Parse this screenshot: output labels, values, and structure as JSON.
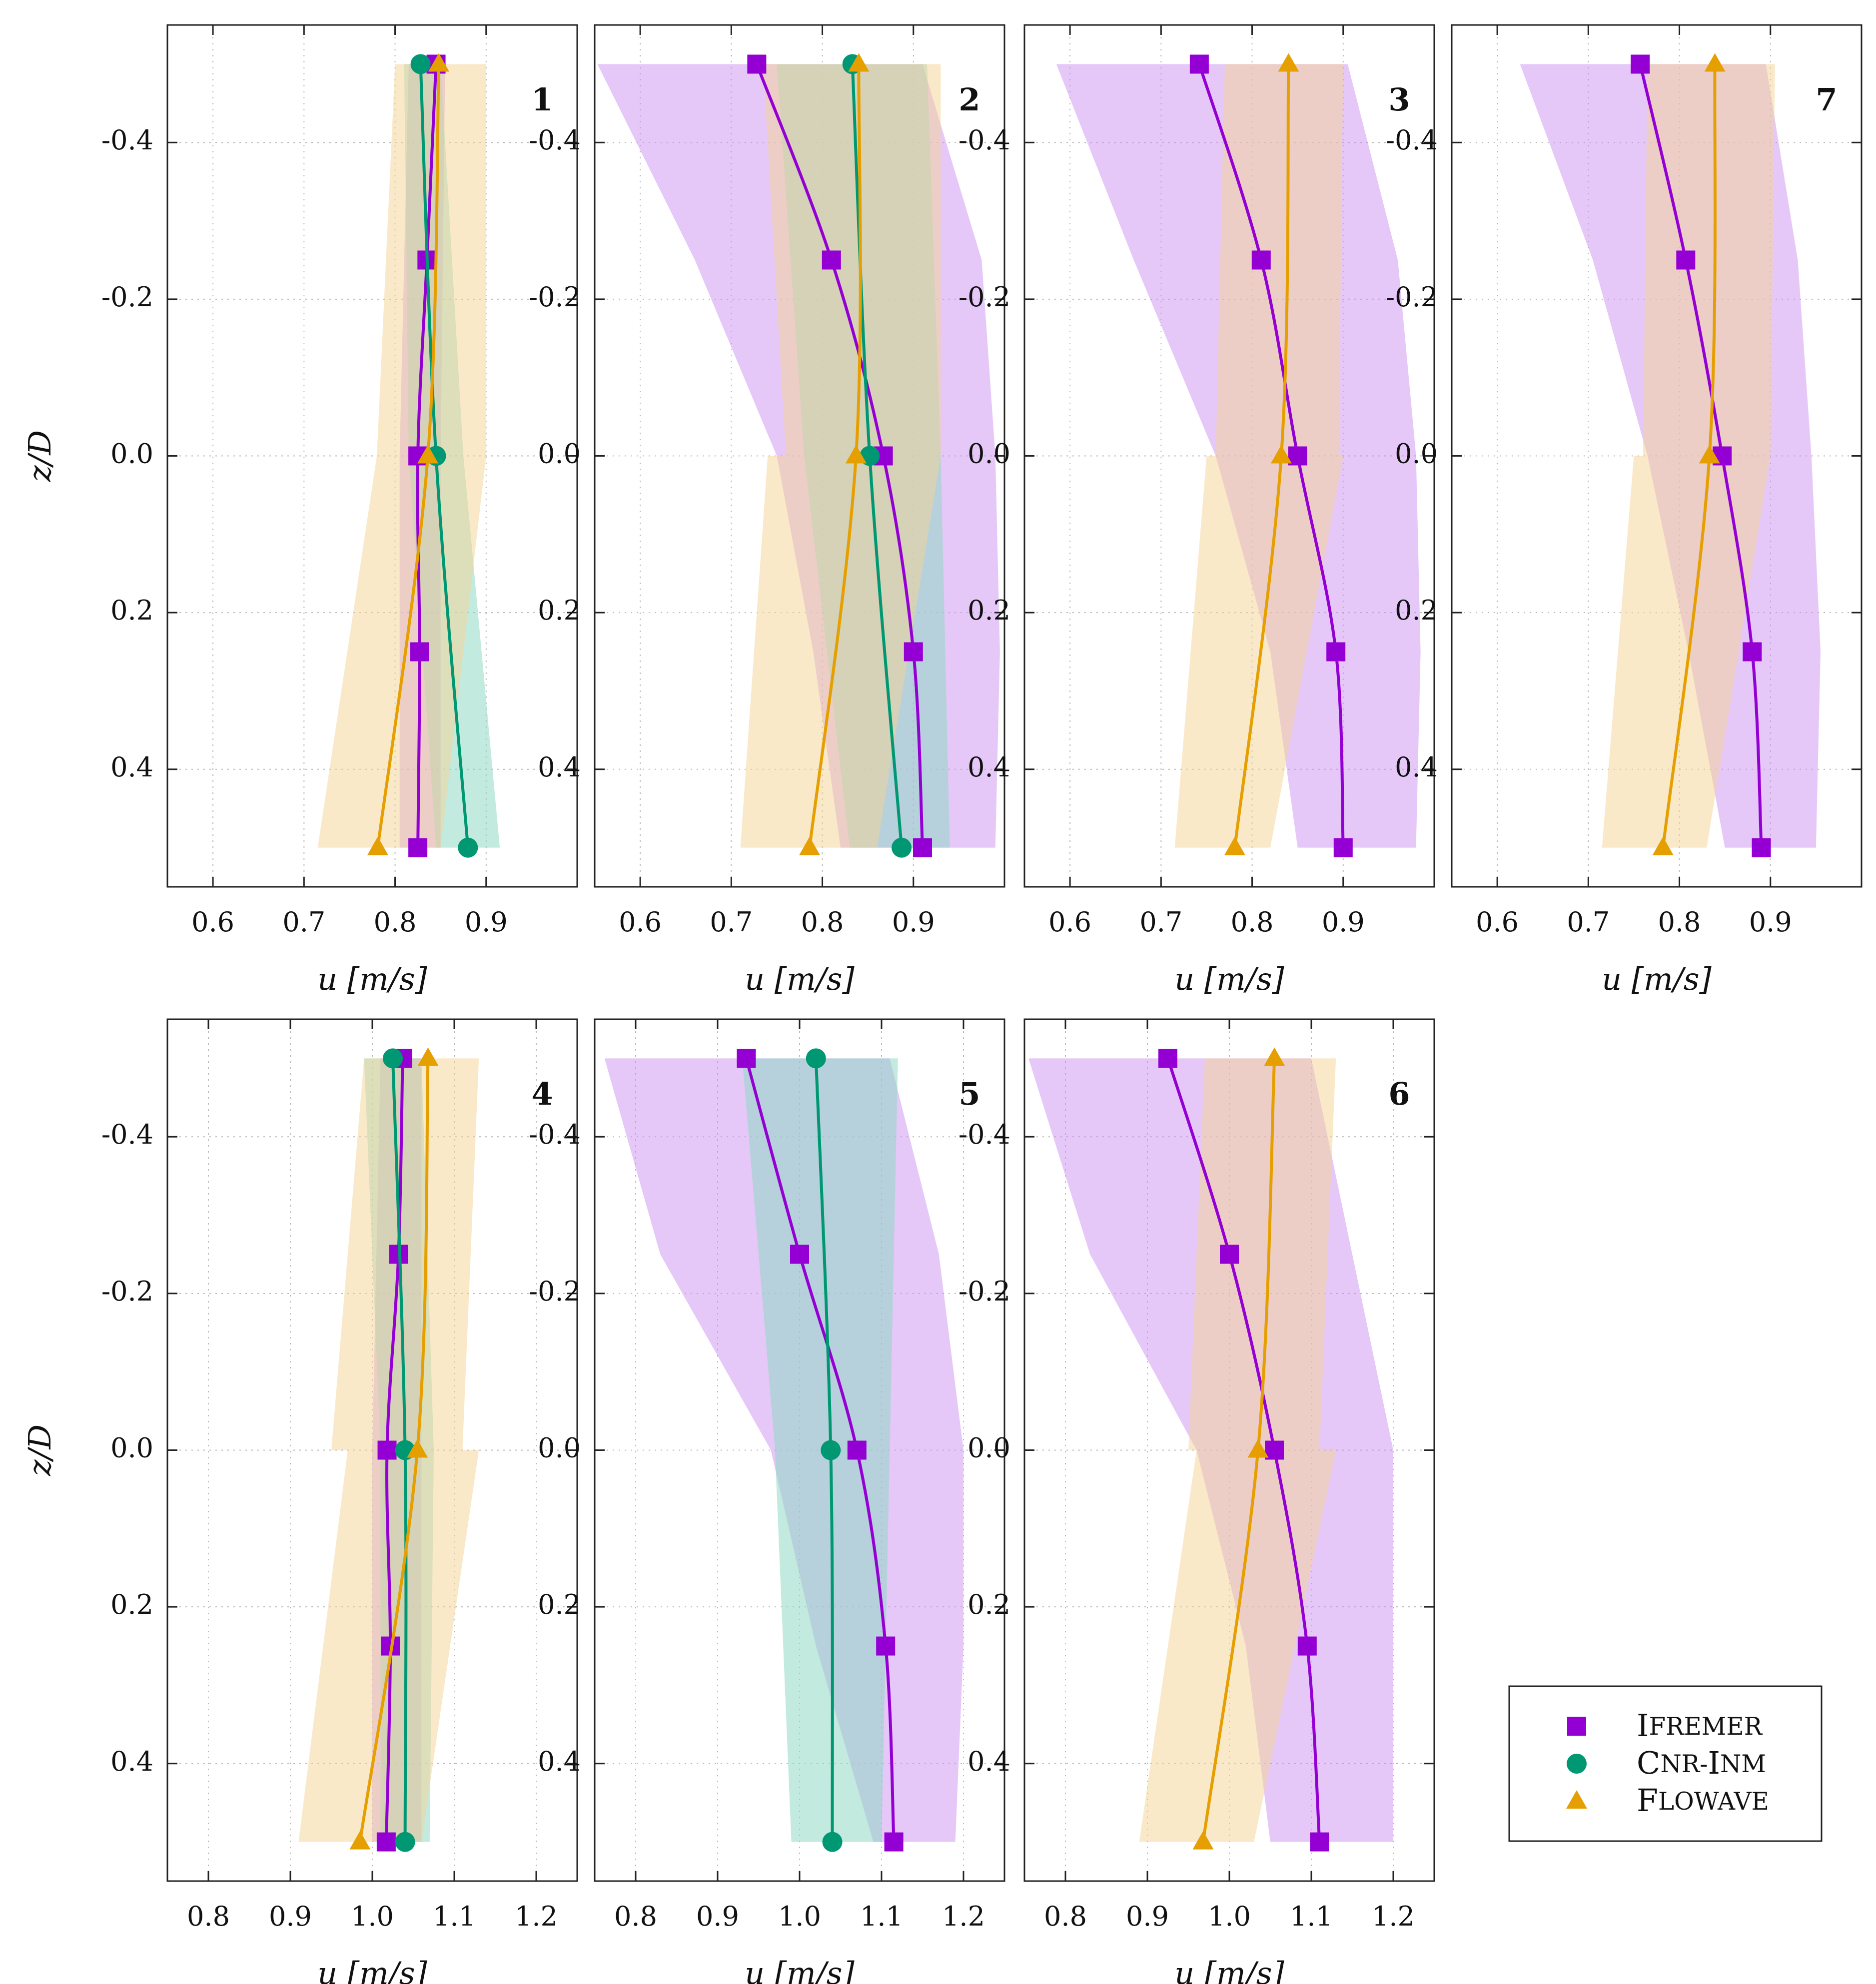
{
  "colors": {
    "ifremer": "#9400D3",
    "cnr": "#009872",
    "flowave": "#E69F00"
  },
  "legend": {
    "items": [
      {
        "key": "ifremer",
        "label": "IFREMER",
        "marker": "square"
      },
      {
        "key": "cnr",
        "label": "CNR-INM",
        "marker": "circle"
      },
      {
        "key": "flowave",
        "label": "FLOWAVE",
        "marker": "triangle"
      }
    ]
  },
  "axis_label_x": "u [m/s]",
  "axis_label_y": "z/D",
  "chart_data": [
    {
      "type": "line",
      "panel": "1",
      "title": "1",
      "xlabel": "u [m/s]",
      "ylabel": "z/D",
      "xlim": [
        0.55,
        1.0
      ],
      "ylim": [
        -0.55,
        0.55
      ],
      "xticks": [
        0.6,
        0.7,
        0.8,
        0.9
      ],
      "xticklabels": [
        "0.6",
        "0.7",
        "0.8",
        "0.9"
      ],
      "yticks": [
        -0.4,
        -0.2,
        0.0,
        0.2,
        0.4
      ],
      "yticklabels": [
        "-0.4",
        "-0.2",
        "0.0",
        "0.2",
        "0.4"
      ],
      "grid": true,
      "series": [
        {
          "name": "IFREMER",
          "key": "ifremer",
          "z": [
            -0.5,
            -0.25,
            0.0,
            0.25,
            0.5
          ],
          "u": [
            0.845,
            0.835,
            0.825,
            0.827,
            0.825
          ],
          "band": {
            "z": [
              -0.5,
              0.0,
              0.5
            ],
            "lo": [
              0.815,
              0.805,
              0.805
            ],
            "hi": [
              0.855,
              0.85,
              0.85
            ]
          }
        },
        {
          "name": "CNR-INM",
          "key": "cnr",
          "z": [
            -0.5,
            0.0,
            0.5
          ],
          "u": [
            0.828,
            0.845,
            0.88
          ],
          "band": {
            "z": [
              -0.5,
              0.0,
              0.5
            ],
            "lo": [
              0.81,
              0.815,
              0.845
            ],
            "hi": [
              0.85,
              0.875,
              0.915
            ]
          }
        },
        {
          "name": "FLOWAVE",
          "key": "flowave",
          "z": [
            -0.5,
            0.0,
            0.5
          ],
          "u": [
            0.848,
            0.836,
            0.781
          ],
          "band": {
            "z": [
              -0.5,
              0.0,
              0.0,
              0.5
            ],
            "lo": [
              0.8,
              0.78,
              0.78,
              0.715
            ],
            "hi": [
              0.9,
              0.9,
              0.9,
              0.85
            ]
          }
        }
      ]
    },
    {
      "type": "line",
      "panel": "2",
      "title": "2",
      "xlabel": "u [m/s]",
      "ylabel": "z/D",
      "xlim": [
        0.55,
        1.0
      ],
      "ylim": [
        -0.55,
        0.55
      ],
      "xticks": [
        0.6,
        0.7,
        0.8,
        0.9
      ],
      "xticklabels": [
        "0.6",
        "0.7",
        "0.8",
        "0.9"
      ],
      "yticks": [
        -0.4,
        -0.2,
        0.0,
        0.2,
        0.4
      ],
      "yticklabels": [
        "-0.4",
        "-0.2",
        "0.0",
        "0.2",
        "0.4"
      ],
      "grid": true,
      "series": [
        {
          "name": "IFREMER",
          "key": "ifremer",
          "z": [
            -0.5,
            -0.25,
            0.0,
            0.25,
            0.5
          ],
          "u": [
            0.728,
            0.81,
            0.867,
            0.9,
            0.91
          ],
          "band": {
            "z": [
              -0.5,
              -0.25,
              0.0,
              0.25,
              0.5
            ],
            "lo": [
              0.553,
              0.66,
              0.75,
              0.79,
              0.82
            ],
            "hi": [
              0.91,
              0.975,
              0.99,
              0.995,
              0.99
            ]
          }
        },
        {
          "name": "CNR-INM",
          "key": "cnr",
          "z": [
            -0.5,
            0.0,
            0.5
          ],
          "u": [
            0.833,
            0.852,
            0.887
          ],
          "band": {
            "z": [
              -0.5,
              0.0,
              0.5
            ],
            "lo": [
              0.75,
              0.78,
              0.83
            ],
            "hi": [
              0.915,
              0.93,
              0.94
            ]
          }
        },
        {
          "name": "FLOWAVE",
          "key": "flowave",
          "z": [
            -0.5,
            0.0,
            0.5
          ],
          "u": [
            0.84,
            0.837,
            0.786
          ],
          "band": {
            "z": [
              -0.5,
              0.0,
              0.0,
              0.5
            ],
            "lo": [
              0.735,
              0.76,
              0.74,
              0.71
            ],
            "hi": [
              0.93,
              0.93,
              0.93,
              0.86
            ]
          }
        }
      ]
    },
    {
      "type": "line",
      "panel": "3",
      "title": "3",
      "xlabel": "u [m/s]",
      "ylabel": "z/D",
      "xlim": [
        0.55,
        1.0
      ],
      "ylim": [
        -0.55,
        0.55
      ],
      "xticks": [
        0.6,
        0.7,
        0.8,
        0.9
      ],
      "xticklabels": [
        "0.6",
        "0.7",
        "0.8",
        "0.9"
      ],
      "yticks": [
        -0.4,
        -0.2,
        0.0,
        0.2,
        0.4
      ],
      "yticklabels": [
        "-0.4",
        "-0.2",
        "0.0",
        "0.2",
        "0.4"
      ],
      "grid": true,
      "series": [
        {
          "name": "IFREMER",
          "key": "ifremer",
          "z": [
            -0.5,
            -0.25,
            0.0,
            0.25,
            0.5
          ],
          "u": [
            0.742,
            0.81,
            0.85,
            0.892,
            0.9
          ],
          "band": {
            "z": [
              -0.5,
              -0.25,
              0.0,
              0.25,
              0.5
            ],
            "lo": [
              0.585,
              0.67,
              0.76,
              0.82,
              0.85
            ],
            "hi": [
              0.905,
              0.96,
              0.98,
              0.985,
              0.98
            ]
          }
        },
        {
          "name": "FLOWAVE",
          "key": "flowave",
          "z": [
            -0.5,
            0.0,
            0.5
          ],
          "u": [
            0.84,
            0.832,
            0.781
          ],
          "band": {
            "z": [
              -0.5,
              0.0,
              0.0,
              0.5
            ],
            "lo": [
              0.77,
              0.76,
              0.75,
              0.715
            ],
            "hi": [
              0.9,
              0.895,
              0.9,
              0.82
            ]
          }
        }
      ]
    },
    {
      "type": "line",
      "panel": "7",
      "title": "7",
      "xlabel": "u [m/s]",
      "ylabel": "z/D",
      "xlim": [
        0.55,
        1.0
      ],
      "ylim": [
        -0.55,
        0.55
      ],
      "xticks": [
        0.6,
        0.7,
        0.8,
        0.9
      ],
      "xticklabels": [
        "0.6",
        "0.7",
        "0.8",
        "0.9"
      ],
      "yticks": [
        -0.4,
        -0.2,
        0.0,
        0.2,
        0.4
      ],
      "yticklabels": [
        "-0.4",
        "-0.2",
        "0.0",
        "0.2",
        "0.4"
      ],
      "grid": true,
      "series": [
        {
          "name": "IFREMER",
          "key": "ifremer",
          "z": [
            -0.5,
            -0.25,
            0.0,
            0.25,
            0.5
          ],
          "u": [
            0.757,
            0.807,
            0.847,
            0.88,
            0.89
          ],
          "band": {
            "z": [
              -0.5,
              -0.25,
              0.0,
              0.25,
              0.5
            ],
            "lo": [
              0.625,
              0.705,
              0.765,
              0.81,
              0.85
            ],
            "hi": [
              0.895,
              0.93,
              0.945,
              0.955,
              0.95
            ]
          }
        },
        {
          "name": "FLOWAVE",
          "key": "flowave",
          "z": [
            -0.5,
            0.0,
            0.5
          ],
          "u": [
            0.839,
            0.833,
            0.782
          ],
          "band": {
            "z": [
              -0.5,
              0.0,
              0.0,
              0.5
            ],
            "lo": [
              0.765,
              0.76,
              0.75,
              0.715
            ],
            "hi": [
              0.905,
              0.9,
              0.9,
              0.83
            ]
          }
        }
      ]
    },
    {
      "type": "line",
      "panel": "4",
      "title": "4",
      "xlabel": "u [m/s]",
      "ylabel": "z/D",
      "xlim": [
        0.75,
        1.25
      ],
      "ylim": [
        -0.55,
        0.55
      ],
      "xticks": [
        0.8,
        0.9,
        1.0,
        1.1,
        1.2
      ],
      "xticklabels": [
        "0.8",
        "0.9",
        "1.0",
        "1.1",
        "1.2"
      ],
      "yticks": [
        -0.4,
        -0.2,
        0.0,
        0.2,
        0.4
      ],
      "yticklabels": [
        "-0.4",
        "-0.2",
        "0.0",
        "0.2",
        "0.4"
      ],
      "grid": true,
      "series": [
        {
          "name": "IFREMER",
          "key": "ifremer",
          "z": [
            -0.5,
            -0.25,
            0.0,
            0.25,
            0.5
          ],
          "u": [
            1.037,
            1.032,
            1.018,
            1.022,
            1.017
          ],
          "band": {
            "z": [
              -0.5,
              0.0,
              0.5
            ],
            "lo": [
              1.01,
              1.0,
              1.0
            ],
            "hi": [
              1.06,
              1.06,
              1.06
            ]
          }
        },
        {
          "name": "CNR-INM",
          "key": "cnr",
          "z": [
            -0.5,
            0.0,
            0.5
          ],
          "u": [
            1.025,
            1.04,
            1.04
          ],
          "band": {
            "z": [
              -0.5,
              0.0,
              0.5
            ],
            "lo": [
              0.99,
              1.01,
              1.01
            ],
            "hi": [
              1.06,
              1.075,
              1.07
            ]
          }
        },
        {
          "name": "FLOWAVE",
          "key": "flowave",
          "z": [
            -0.5,
            0.0,
            0.5
          ],
          "u": [
            1.068,
            1.055,
            0.985
          ],
          "band": {
            "z": [
              -0.5,
              0.0,
              0.0,
              0.5
            ],
            "lo": [
              0.99,
              0.95,
              0.97,
              0.91
            ],
            "hi": [
              1.13,
              1.11,
              1.13,
              1.06
            ]
          }
        }
      ]
    },
    {
      "type": "line",
      "panel": "5",
      "title": "5",
      "xlabel": "u [m/s]",
      "ylabel": "z/D",
      "xlim": [
        0.75,
        1.25
      ],
      "ylim": [
        -0.55,
        0.55
      ],
      "xticks": [
        0.8,
        0.9,
        1.0,
        1.1,
        1.2
      ],
      "xticklabels": [
        "0.8",
        "0.9",
        "1.0",
        "1.1",
        "1.2"
      ],
      "yticks": [
        -0.4,
        -0.2,
        0.0,
        0.2,
        0.4
      ],
      "yticklabels": [
        "-0.4",
        "-0.2",
        "0.0",
        "0.2",
        "0.4"
      ],
      "grid": true,
      "series": [
        {
          "name": "IFREMER",
          "key": "ifremer",
          "z": [
            -0.5,
            -0.25,
            0.0,
            0.25,
            0.5
          ],
          "u": [
            0.935,
            1.0,
            1.07,
            1.105,
            1.115
          ],
          "band": {
            "z": [
              -0.5,
              -0.25,
              0.0,
              0.25,
              0.5
            ],
            "lo": [
              0.762,
              0.83,
              0.965,
              1.02,
              1.09
            ],
            "hi": [
              1.11,
              1.17,
              1.2,
              1.2,
              1.19
            ]
          }
        },
        {
          "name": "CNR-INM",
          "key": "cnr",
          "z": [
            -0.5,
            0.0,
            0.5
          ],
          "u": [
            1.02,
            1.038,
            1.04
          ],
          "band": {
            "z": [
              -0.5,
              0.0,
              0.5
            ],
            "lo": [
              0.93,
              0.97,
              0.99
            ],
            "hi": [
              1.12,
              1.11,
              1.1
            ]
          }
        }
      ]
    },
    {
      "type": "line",
      "panel": "6",
      "title": "6",
      "xlabel": "u [m/s]",
      "ylabel": "z/D",
      "xlim": [
        0.75,
        1.25
      ],
      "ylim": [
        -0.55,
        0.55
      ],
      "xticks": [
        0.8,
        0.9,
        1.0,
        1.1,
        1.2
      ],
      "xticklabels": [
        "0.8",
        "0.9",
        "1.0",
        "1.1",
        "1.2"
      ],
      "yticks": [
        -0.4,
        -0.2,
        0.0,
        0.2,
        0.4
      ],
      "yticklabels": [
        "-0.4",
        "-0.2",
        "0.0",
        "0.2",
        "0.4"
      ],
      "grid": true,
      "series": [
        {
          "name": "IFREMER",
          "key": "ifremer",
          "z": [
            -0.5,
            -0.25,
            0.0,
            0.25,
            0.5
          ],
          "u": [
            0.925,
            1.0,
            1.055,
            1.095,
            1.11
          ],
          "band": {
            "z": [
              -0.5,
              -0.25,
              0.0,
              0.25,
              0.5
            ],
            "lo": [
              0.755,
              0.83,
              0.96,
              1.02,
              1.05
            ],
            "hi": [
              1.1,
              1.15,
              1.2,
              1.2,
              1.2
            ]
          }
        },
        {
          "name": "FLOWAVE",
          "key": "flowave",
          "z": [
            -0.5,
            0.0,
            0.5
          ],
          "u": [
            1.055,
            1.035,
            0.968
          ],
          "band": {
            "z": [
              -0.5,
              0.0,
              0.0,
              0.5
            ],
            "lo": [
              0.97,
              0.95,
              0.96,
              0.89
            ],
            "hi": [
              1.13,
              1.11,
              1.13,
              1.03
            ]
          }
        }
      ]
    }
  ]
}
